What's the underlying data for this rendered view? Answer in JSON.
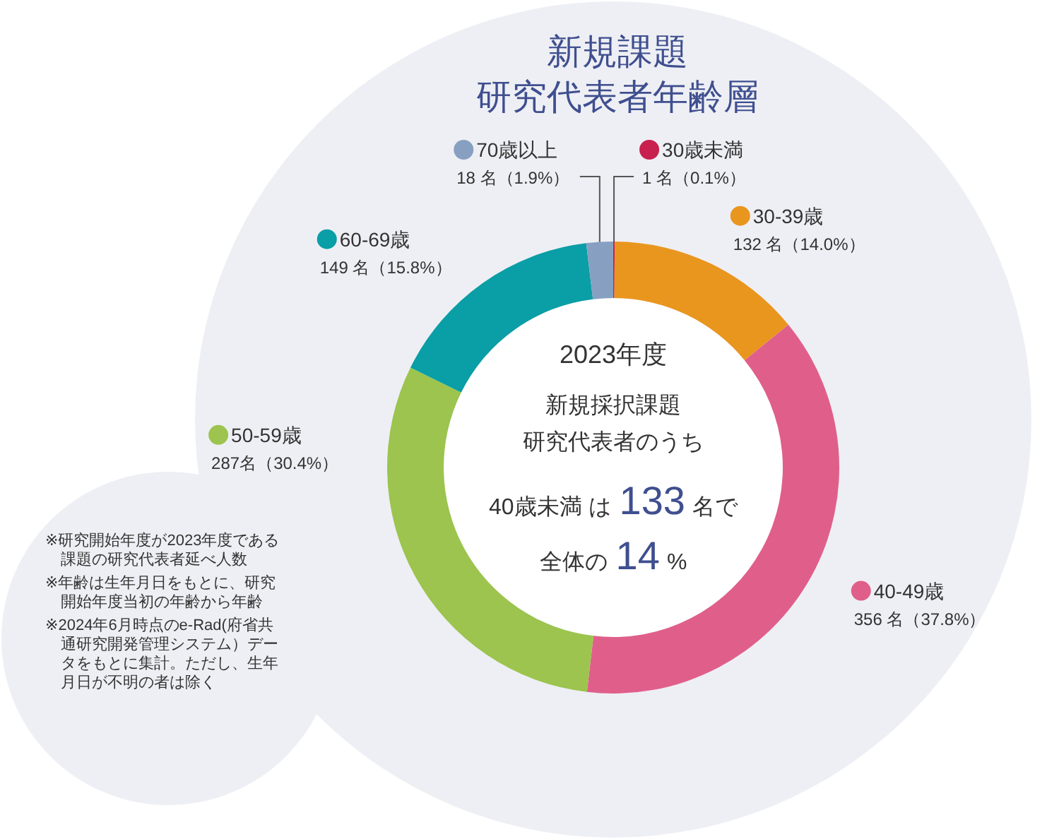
{
  "chart_data": {
    "type": "donut",
    "title": "新規課題",
    "subtitle": "研究代表者年齢層",
    "categories": [
      "30歳未満",
      "30-39歳",
      "40-49歳",
      "50-59歳",
      "60-69歳",
      "70歳以上"
    ],
    "values": [
      1,
      132,
      356,
      287,
      149,
      18
    ],
    "colors": [
      "#c8204f",
      "#e9961f",
      "#e05f8a",
      "#9cc44e",
      "#0a9ea6",
      "#87a0c2"
    ],
    "value_labels": [
      "1 名（0.1%）",
      "132 名（14.0%）",
      "356 名（37.8%）",
      "287名（30.4%）",
      "149 名（15.8%）",
      "18 名（1.9%）"
    ],
    "legend": "top",
    "annotations": [
      "2023年度",
      "新規採択課題研究代表者のうち",
      "40歳未満 は133名で",
      "全体の14%",
      "※研究開始年度が2023年度である課題の研究代表者延べ人数",
      "※年齢は生年月日をもとに、研究開始年度当初の年齢から年齢",
      "※2024年6月時点のe-Rad(府省共通研究開発管理システム）データをもとに集計。ただし、生年月日が不明の者は除く"
    ]
  }
}
